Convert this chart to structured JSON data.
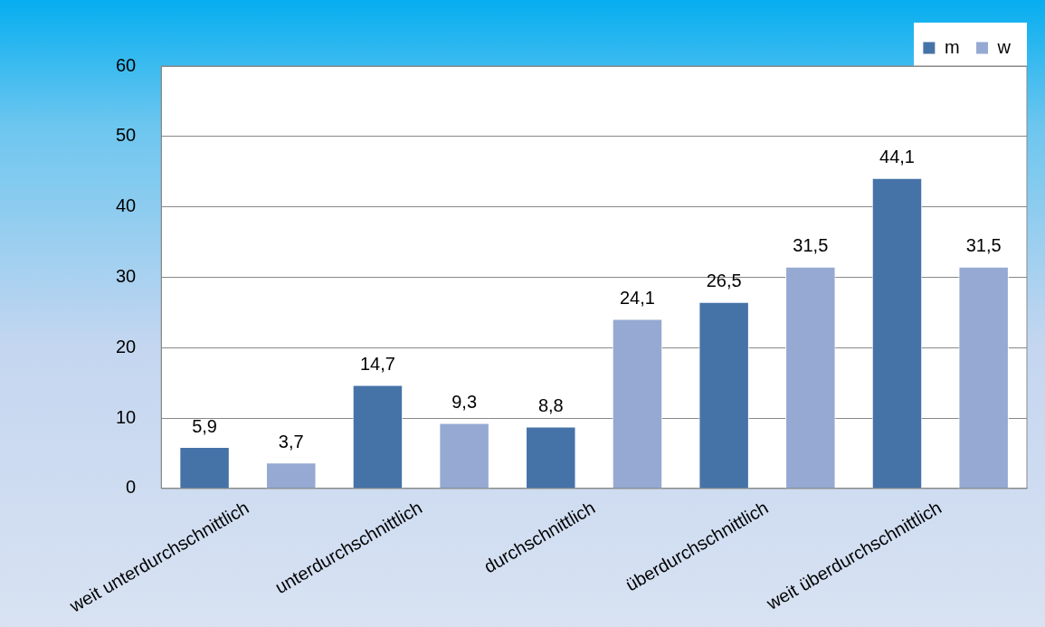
{
  "chart_data": {
    "type": "bar",
    "categories": [
      "weit unterdurchschnittlich",
      "unterdurchschnittlich",
      "durchschnittlich",
      "überdurchschnittlich",
      "weit überdurchschnittlich"
    ],
    "series": [
      {
        "name": "m",
        "color": "#4673a7",
        "values": [
          5.9,
          14.7,
          8.8,
          26.5,
          44.1
        ],
        "value_labels": [
          "5,9",
          "14,7",
          "8,8",
          "26,5",
          "44,1"
        ]
      },
      {
        "name": "w",
        "color": "#95a9d2",
        "values": [
          3.7,
          9.3,
          24.1,
          31.5,
          31.5
        ],
        "value_labels": [
          "3,7",
          "9,3",
          "24,1",
          "31,5",
          "31,5"
        ]
      }
    ],
    "ylim": [
      0,
      60
    ],
    "yticks": [
      0,
      10,
      20,
      30,
      40,
      50,
      60
    ],
    "grid": "y",
    "legend": "top right"
  }
}
